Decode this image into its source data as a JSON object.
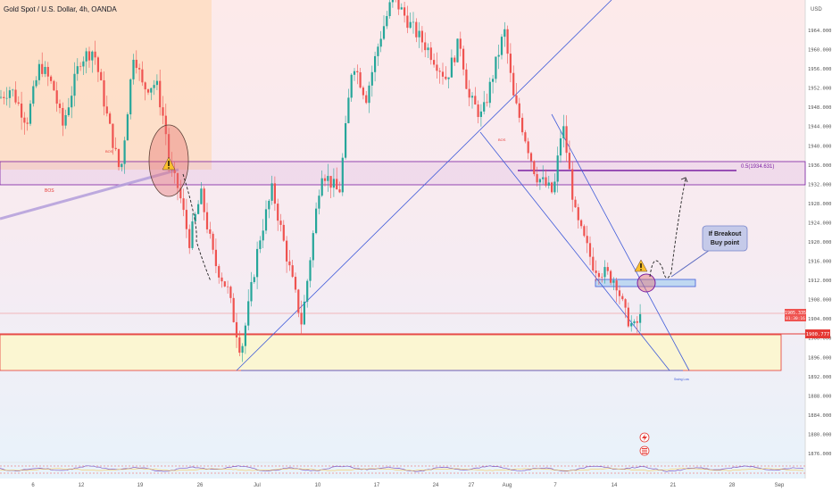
{
  "header": {
    "symbol_title": "Gold Spot / U.S. Dollar, 4h, OANDA",
    "currency": "USD"
  },
  "colors": {
    "up": "#26a69a",
    "down": "#ef5350",
    "box": "#7b1fa2",
    "channel": "#3f5bd9",
    "support": "#e53935",
    "fill_zone": "#fbf6d2",
    "top_zone": "#ffd9b5"
  },
  "chart_data": {
    "type": "candlestick",
    "title": "Gold Spot / U.S. Dollar, 4h, OANDA",
    "x_ticks": [
      "6",
      "12",
      "19",
      "26",
      "Jul",
      "10",
      "17",
      "24",
      "27",
      "Aug",
      "7",
      "14",
      "21",
      "28",
      "Sep"
    ],
    "y_ticks": [
      1876,
      1880,
      1884,
      1888,
      1892,
      1896,
      1900,
      1904,
      1908,
      1912,
      1916,
      1920,
      1924,
      1928,
      1932,
      1936,
      1940,
      1944,
      1948,
      1952,
      1956,
      1960,
      1964
    ],
    "ylim": [
      1871,
      1967
    ],
    "close_path": [
      [
        0,
        1950
      ],
      [
        12,
        1952
      ],
      [
        30,
        1945
      ],
      [
        45,
        1957
      ],
      [
        60,
        1952
      ],
      [
        70,
        1944
      ],
      [
        90,
        1958
      ],
      [
        105,
        1960
      ],
      [
        120,
        1946
      ],
      [
        135,
        1934
      ],
      [
        150,
        1960
      ],
      [
        160,
        1952
      ],
      [
        175,
        1953
      ],
      [
        185,
        1944
      ],
      [
        190,
        1935
      ],
      [
        200,
        1931
      ],
      [
        212,
        1920
      ],
      [
        225,
        1930
      ],
      [
        240,
        1916
      ],
      [
        255,
        1910
      ],
      [
        270,
        1897
      ],
      [
        290,
        1920
      ],
      [
        305,
        1931
      ],
      [
        320,
        1918
      ],
      [
        338,
        1903
      ],
      [
        360,
        1935
      ],
      [
        380,
        1930
      ],
      [
        395,
        1958
      ],
      [
        410,
        1950
      ],
      [
        425,
        1962
      ],
      [
        440,
        1971
      ],
      [
        460,
        1965
      ],
      [
        480,
        1960
      ],
      [
        500,
        1954
      ],
      [
        515,
        1962
      ],
      [
        525,
        1950
      ],
      [
        540,
        1946
      ],
      [
        565,
        1964
      ],
      [
        575,
        1950
      ],
      [
        585,
        1944
      ],
      [
        600,
        1934
      ],
      [
        620,
        1930
      ],
      [
        630,
        1945
      ],
      [
        645,
        1925
      ],
      [
        665,
        1915
      ],
      [
        690,
        1912
      ],
      [
        700,
        1905
      ],
      [
        710,
        1902
      ],
      [
        720,
        1905
      ]
    ],
    "price_label": "1905.335",
    "price_timer": "01:30:16",
    "level_price": "1900.777",
    "fib_label": "0.5(1934.631)",
    "callout": [
      "If Breakout",
      "Buy point"
    ],
    "bos_labels": [
      "BOS",
      "BOS",
      "BOS"
    ],
    "annotation_small": "Swing Low"
  }
}
